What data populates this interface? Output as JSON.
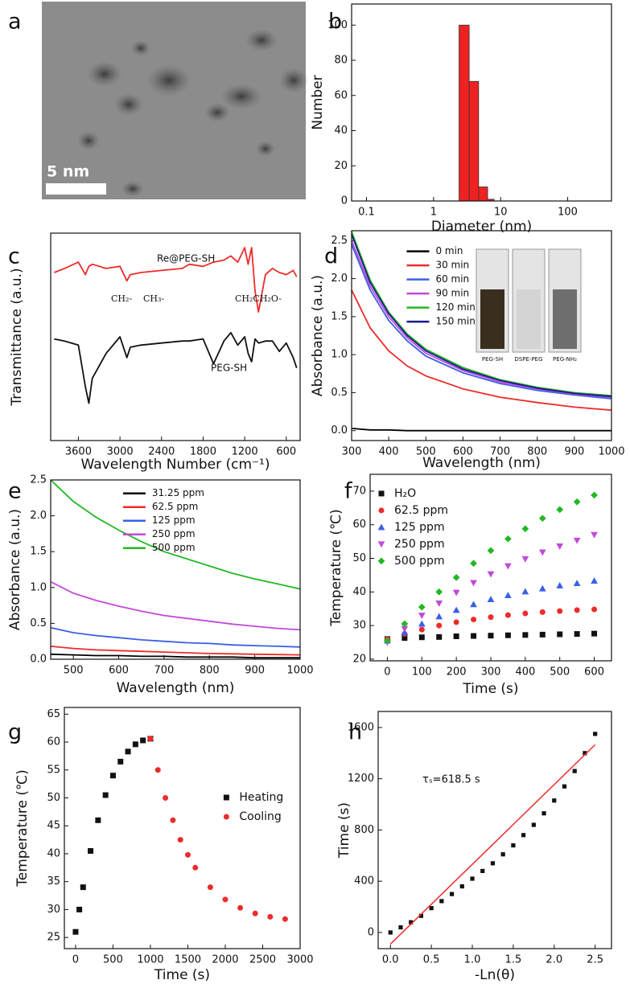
{
  "image_panel": {
    "label": "a",
    "scale_bar": "5 nm"
  },
  "chart_data": [
    {
      "type": "histogram",
      "panel_label": "b",
      "xlabel": "Diameter (nm)",
      "ylabel": "Number",
      "bins": [
        2.4,
        3.4,
        4.7,
        6.4,
        8
      ],
      "values": [
        100,
        68,
        8,
        1
      ],
      "color": "#ee2222",
      "xlog": true,
      "xlim": [
        0.06,
        450
      ],
      "xticks": [
        0.1,
        1,
        10,
        100
      ],
      "ylim": [
        0,
        112
      ],
      "yticks": [
        0,
        20,
        40,
        60,
        80,
        100
      ]
    },
    {
      "type": "line",
      "panel_label": "c",
      "xlabel": "Wavelength Number (cm⁻¹)",
      "ylabel": "Transmittance (a.u.)",
      "x": [
        3950,
        3800,
        3600,
        3500,
        3450,
        3400,
        3200,
        3000,
        2900,
        2850,
        2700,
        2400,
        2100,
        2000,
        1800,
        1650,
        1500,
        1400,
        1300,
        1200,
        1150,
        1100,
        1050,
        1000,
        900,
        800,
        700,
        600,
        500,
        450
      ],
      "series": [
        {
          "name": "Re@PEG-SH",
          "color": "#ee2b2b",
          "values": [
            8.1,
            8.3,
            8.6,
            8.0,
            8.4,
            8.5,
            8.3,
            8.4,
            7.7,
            8.0,
            8.1,
            8.2,
            8.3,
            8.5,
            8.4,
            8.6,
            8.7,
            8.9,
            8.6,
            9.3,
            8.5,
            9.3,
            7.2,
            6.2,
            8.0,
            8.3,
            8.1,
            8.0,
            8.2,
            7.9
          ]
        },
        {
          "name": "PEG-SH",
          "color": "#111111",
          "values": [
            4.9,
            4.8,
            4.6,
            2.6,
            1.8,
            3.0,
            4.2,
            5.0,
            4.0,
            4.5,
            4.6,
            4.7,
            4.8,
            4.8,
            4.9,
            3.7,
            4.8,
            5.2,
            4.6,
            5.0,
            4.2,
            3.8,
            4.9,
            4.7,
            4.8,
            4.8,
            4.3,
            4.7,
            4.0,
            3.5
          ]
        }
      ],
      "annotations": [
        "CH₂-",
        "CH₃-",
        "CH₂CH₂O-"
      ],
      "xlim": [
        4000,
        400
      ],
      "xticks": [
        3600,
        3000,
        2400,
        1800,
        1200,
        600
      ],
      "ylim": [
        0,
        10
      ]
    },
    {
      "type": "line",
      "panel_label": "d",
      "xlabel": "Wavelength (nm)",
      "ylabel": "Absorbance (a.u.)",
      "x": [
        300,
        350,
        400,
        450,
        500,
        600,
        700,
        800,
        900,
        1000
      ],
      "series": [
        {
          "name": "0 min",
          "color": "#000000",
          "values": [
            0.03,
            0.01,
            0.01,
            0,
            0,
            0,
            0,
            0,
            0,
            0
          ]
        },
        {
          "name": "30 min",
          "color": "#ee2b2b",
          "values": [
            1.85,
            1.35,
            1.05,
            0.85,
            0.72,
            0.55,
            0.44,
            0.37,
            0.31,
            0.27
          ]
        },
        {
          "name": "60 min",
          "color": "#3a5fe8",
          "values": [
            2.45,
            1.85,
            1.45,
            1.18,
            0.98,
            0.76,
            0.62,
            0.53,
            0.47,
            0.42
          ]
        },
        {
          "name": "90 min",
          "color": "#c24ad8",
          "values": [
            2.5,
            1.9,
            1.5,
            1.22,
            1.02,
            0.79,
            0.64,
            0.55,
            0.48,
            0.44
          ]
        },
        {
          "name": "120 min",
          "color": "#22b822",
          "values": [
            2.62,
            1.98,
            1.56,
            1.27,
            1.07,
            0.83,
            0.67,
            0.57,
            0.5,
            0.46
          ]
        },
        {
          "name": "150 min",
          "color": "#1a1a8c",
          "values": [
            2.58,
            1.95,
            1.54,
            1.25,
            1.05,
            0.81,
            0.66,
            0.56,
            0.49,
            0.45
          ]
        }
      ],
      "legend": "upper left",
      "inset_labels": [
        "PEG-SH",
        "DSPE-PEG",
        "PEG-NH₂"
      ],
      "xlim": [
        300,
        1000
      ],
      "xticks": [
        300,
        400,
        500,
        600,
        700,
        800,
        900,
        1000
      ],
      "ylim": [
        -0.13,
        2.63
      ],
      "yticks": [
        {
          "value": 0,
          "label": "0.0"
        },
        0.5,
        {
          "value": 1,
          "label": "1.0"
        },
        1.5,
        {
          "value": 2,
          "label": "2.0"
        },
        2.5
      ]
    },
    {
      "type": "line",
      "panel_label": "e",
      "xlabel": "Wavelength (nm)",
      "ylabel": "Absorbance (a.u.)",
      "x": [
        450,
        500,
        550,
        600,
        650,
        700,
        750,
        800,
        850,
        900,
        950,
        1000
      ],
      "series": [
        {
          "name": "31.25 ppm",
          "color": "#000000",
          "values": [
            0.07,
            0.06,
            0.05,
            0.05,
            0.04,
            0.04,
            0.03,
            0.03,
            0.03,
            0.02,
            0.02,
            0.02
          ]
        },
        {
          "name": "62.5 ppm",
          "color": "#ee2b2b",
          "values": [
            0.18,
            0.15,
            0.13,
            0.12,
            0.11,
            0.1,
            0.09,
            0.08,
            0.075,
            0.07,
            0.065,
            0.06
          ]
        },
        {
          "name": "125 ppm",
          "color": "#3a5fe8",
          "values": [
            0.44,
            0.37,
            0.33,
            0.3,
            0.27,
            0.25,
            0.23,
            0.22,
            0.2,
            0.19,
            0.18,
            0.17
          ]
        },
        {
          "name": "250 ppm",
          "color": "#c24ad8",
          "values": [
            1.08,
            0.92,
            0.82,
            0.74,
            0.67,
            0.61,
            0.57,
            0.53,
            0.49,
            0.46,
            0.43,
            0.41
          ]
        },
        {
          "name": "500 ppm",
          "color": "#22b822",
          "values": [
            2.5,
            2.2,
            1.98,
            1.8,
            1.64,
            1.5,
            1.4,
            1.3,
            1.2,
            1.12,
            1.05,
            0.98
          ]
        }
      ],
      "legend": "upper center",
      "xlim": [
        450,
        1000
      ],
      "xticks": [
        500,
        600,
        700,
        800,
        900,
        1000
      ],
      "ylim": [
        0,
        2.5
      ],
      "yticks": [
        {
          "value": 0,
          "label": "0.0"
        },
        0.5,
        {
          "value": 1,
          "label": "1.0"
        },
        1.5,
        {
          "value": 2,
          "label": "2.0"
        },
        2.5
      ]
    },
    {
      "type": "scatter",
      "panel_label": "f",
      "xlabel": "Time (s)",
      "ylabel": "Temperature (℃)",
      "x": [
        0,
        50,
        100,
        150,
        200,
        250,
        300,
        350,
        400,
        450,
        500,
        550,
        600
      ],
      "series": [
        {
          "name": "H₂O",
          "color": "#111111",
          "marker": "square",
          "values": [
            26,
            26.3,
            26.5,
            26.6,
            26.8,
            26.9,
            27,
            27.1,
            27.2,
            27.3,
            27.4,
            27.5,
            27.6
          ]
        },
        {
          "name": "62.5 ppm",
          "color": "#ee2b2b",
          "marker": "circle",
          "values": [
            26,
            27.5,
            28.8,
            30,
            31,
            31.8,
            32.5,
            33.1,
            33.6,
            34,
            34.3,
            34.6,
            34.8
          ]
        },
        {
          "name": "125 ppm",
          "color": "#3a5fe8",
          "marker": "triangle",
          "values": [
            25.5,
            28,
            30.5,
            32.7,
            34.6,
            36.3,
            37.8,
            39,
            40.1,
            41,
            41.9,
            42.6,
            43.3
          ]
        },
        {
          "name": "250 ppm",
          "color": "#c24ad8",
          "marker": "triangle-down",
          "values": [
            25,
            29,
            33,
            36.6,
            39.8,
            42.7,
            45.3,
            47.7,
            49.8,
            51.8,
            53.6,
            55.3,
            57
          ]
        },
        {
          "name": "500 ppm",
          "color": "#22b822",
          "marker": "diamond",
          "values": [
            25.5,
            30.5,
            35.5,
            40,
            44.3,
            48.5,
            52.3,
            55.8,
            58.8,
            61.9,
            64.5,
            66.8,
            68.8
          ]
        }
      ],
      "legend": "upper left",
      "xlim": [
        -50,
        650
      ],
      "xticks": [
        0,
        100,
        200,
        300,
        400,
        500,
        600
      ],
      "ylim": [
        19.5,
        75
      ],
      "yticks": [
        20,
        30,
        40,
        50,
        60,
        70
      ]
    },
    {
      "type": "scatter",
      "panel_label": "g",
      "xlabel": "Time (s)",
      "ylabel": "Temperature (℃)",
      "series": [
        {
          "name": "Heating",
          "color": "#111111",
          "marker": "square",
          "x": [
            0,
            50,
            100,
            200,
            300,
            400,
            500,
            600,
            700,
            800,
            900,
            1000
          ],
          "values": [
            26,
            30,
            34,
            40.5,
            46,
            50.5,
            54,
            56.5,
            58.3,
            59.6,
            60.3,
            60.6
          ]
        },
        {
          "name": "Cooling",
          "color": "#ee2b2b",
          "marker": "circle",
          "x": [
            1000,
            1100,
            1200,
            1300,
            1400,
            1500,
            1600,
            1800,
            2000,
            2200,
            2400,
            2600,
            2800
          ],
          "values": [
            60.6,
            55,
            50,
            46,
            42.5,
            39.8,
            37.5,
            34,
            31.8,
            30.3,
            29.3,
            28.7,
            28.3
          ]
        }
      ],
      "legend": "center right",
      "xlim": [
        -150,
        3000
      ],
      "xticks": [
        0,
        500,
        1000,
        1500,
        2000,
        2500,
        3000
      ],
      "ylim": [
        23,
        66.2
      ],
      "yticks": [
        25,
        30,
        35,
        40,
        45,
        50,
        55,
        60,
        65
      ]
    },
    {
      "type": "scatter",
      "panel_label": "h",
      "xlabel": "-Ln(θ)",
      "ylabel": "Time (s)",
      "series": [
        {
          "color": "#111111",
          "marker": "square",
          "x": [
            0,
            0.125,
            0.25,
            0.375,
            0.5,
            0.625,
            0.75,
            0.875,
            1,
            1.125,
            1.25,
            1.375,
            1.5,
            1.625,
            1.75,
            1.875,
            2,
            2.125,
            2.25,
            2.375,
            2.5
          ],
          "values": [
            0,
            40,
            80,
            130,
            190,
            245,
            300,
            360,
            420,
            480,
            540,
            610,
            680,
            760,
            840,
            930,
            1030,
            1140,
            1260,
            1400,
            1550
          ]
        },
        {
          "color": "#ee2b2b",
          "mode": "line",
          "x": [
            0,
            2.5
          ],
          "values": [
            -90,
            1465
          ]
        }
      ],
      "annotations": [
        "τₛ=618.5 s"
      ],
      "xlim": [
        -0.15,
        2.7
      ],
      "xticks": [
        {
          "value": 0,
          "label": "0.0"
        },
        0.5,
        {
          "value": 1,
          "label": "1.0"
        },
        1.5,
        {
          "value": 2,
          "label": "2.0"
        },
        2.5
      ],
      "ylim": [
        -126,
        1725
      ],
      "yticks": [
        0,
        400,
        800,
        1200,
        1600
      ]
    }
  ]
}
